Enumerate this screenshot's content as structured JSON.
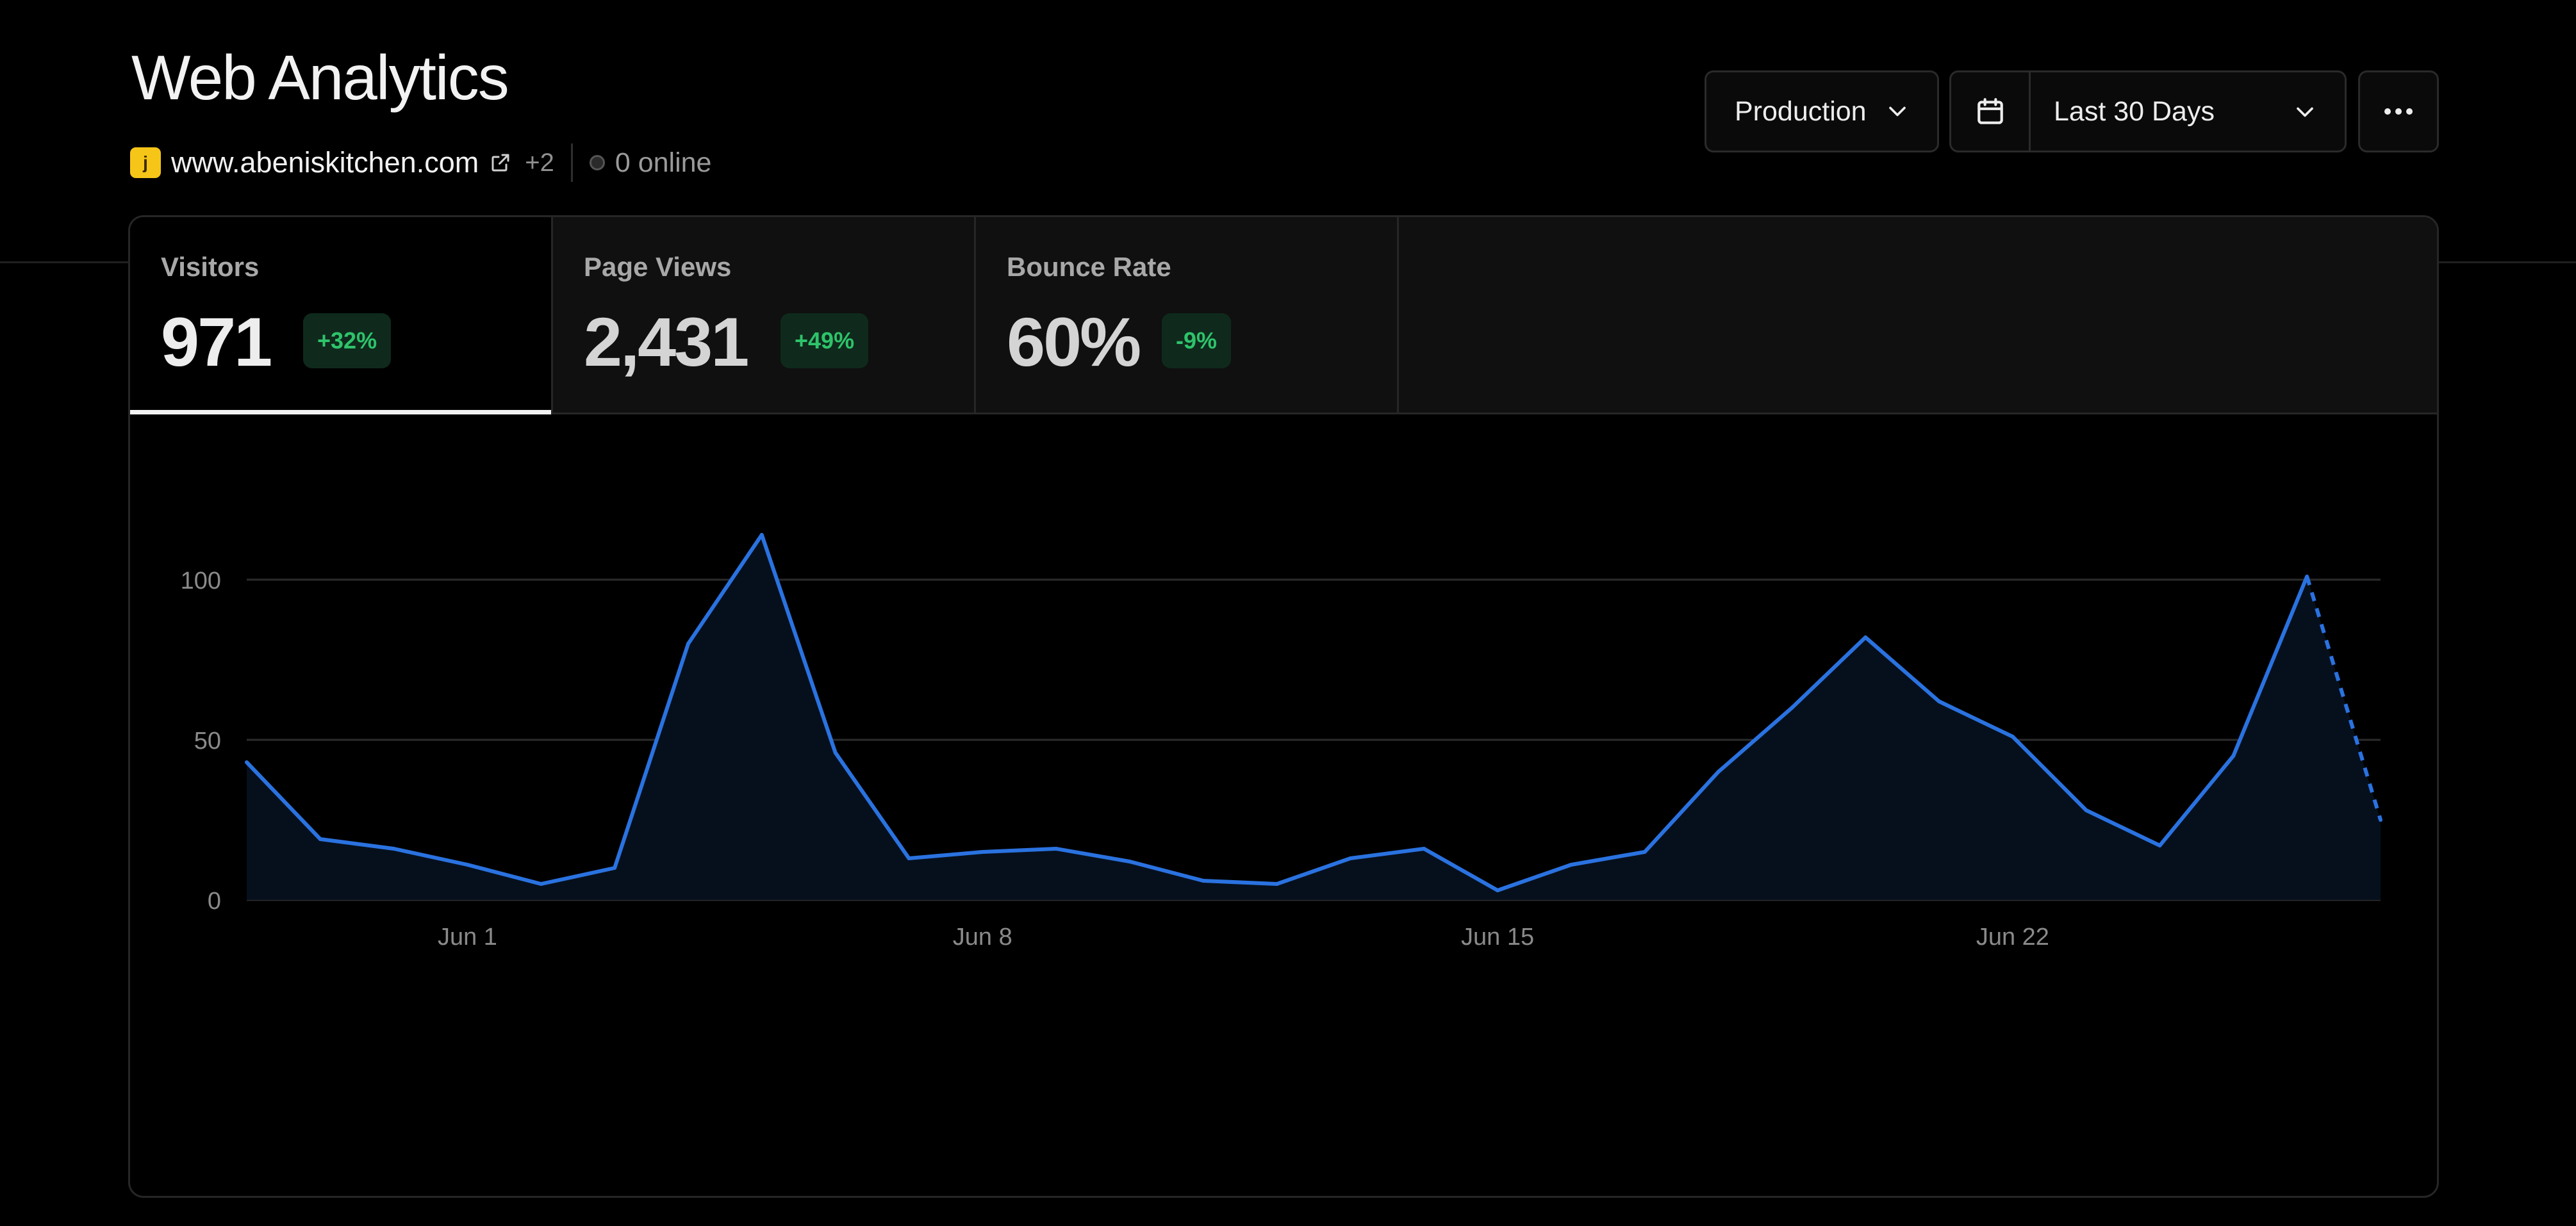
{
  "header": {
    "title": "Web Analytics",
    "favicon_letter": "j",
    "domain": "www.abeniskitchen.com",
    "extra_domains": "+2",
    "online": "0 online"
  },
  "controls": {
    "environment": "Production",
    "date_range": "Last 30 Days"
  },
  "stats": [
    {
      "label": "Visitors",
      "value": "971",
      "change": "+32%"
    },
    {
      "label": "Page Views",
      "value": "2,431",
      "change": "+49%"
    },
    {
      "label": "Bounce Rate",
      "value": "60%",
      "change": "-9%"
    }
  ],
  "colors": {
    "line": "#2a72e0",
    "area": "#06101d",
    "grid": "#2c2c2c",
    "badge_text": "#2ec36b"
  },
  "chart_data": {
    "type": "area",
    "series": [
      {
        "values": [
          43,
          19,
          16,
          11,
          5,
          10,
          80,
          114,
          46,
          13,
          15,
          16,
          12,
          6,
          5,
          13,
          16,
          3,
          11,
          15,
          40,
          60,
          82,
          62,
          51,
          28,
          17,
          45,
          101,
          25
        ]
      }
    ],
    "dashed_last_segment": true,
    "ylim": [
      0,
      120
    ],
    "yticks": [
      0,
      50,
      100
    ],
    "xtick_labels": [
      "Jun 1",
      "Jun 8",
      "Jun 15",
      "Jun 22"
    ],
    "xtick_indices": [
      3,
      10,
      17,
      24
    ],
    "grid": true
  }
}
